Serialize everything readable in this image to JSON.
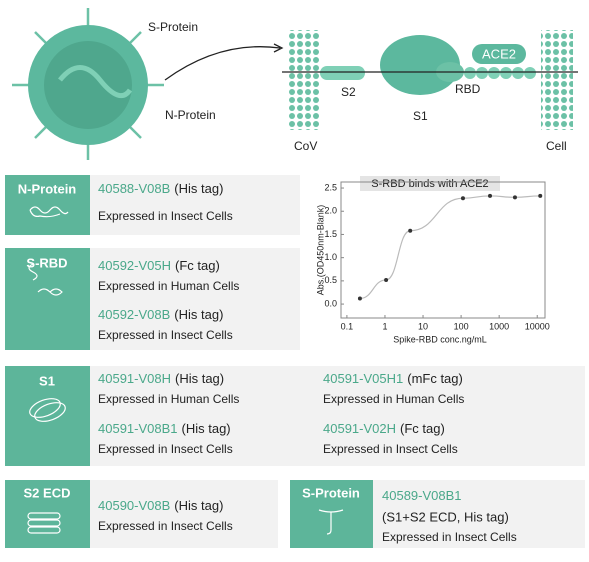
{
  "diagram": {
    "s_protein": "S-Protein",
    "n_protein": "N-Protein",
    "ace2": "ACE2",
    "s2": "S2",
    "rbd": "RBD",
    "s1": "S1",
    "cov": "CoV",
    "cell": "Cell"
  },
  "cards": [
    {
      "title": "N-Protein",
      "products": [
        {
          "id": "40588-V08B",
          "tag": "(His tag)",
          "expression": "Expressed in Insect Cells"
        }
      ]
    },
    {
      "title": "S-RBD",
      "products": [
        {
          "id": "40592-V05H",
          "tag": "(Fc tag)",
          "expression": "Expressed in Human Cells"
        },
        {
          "id": "40592-V08B",
          "tag": "(His tag)",
          "expression": "Expressed in Insect Cells"
        }
      ]
    },
    {
      "title": "S1",
      "products": [
        {
          "id": "40591-V08H",
          "tag": "(His tag)",
          "expression": "Expressed in Human Cells"
        },
        {
          "id": "40591-V08B1",
          "tag": "(His tag)",
          "expression": "Expressed in Insect Cells"
        },
        {
          "id": "40591-V05H1",
          "tag": "(mFc tag)",
          "expression": "Expressed in Human Cells"
        },
        {
          "id": "40591-V02H",
          "tag": "(Fc tag)",
          "expression": "Expressed in Insect Cells"
        }
      ]
    },
    {
      "title": "S2 ECD",
      "products": [
        {
          "id": "40590-V08B",
          "tag": "(His tag)",
          "expression": "Expressed in Insect Cells"
        }
      ]
    },
    {
      "title": "S-Protein",
      "products": [
        {
          "id": "40589-V08B1",
          "tag": "(S1+S2 ECD, His tag)",
          "expression": "Expressed in Insect Cells"
        }
      ]
    }
  ],
  "chart_data": {
    "type": "scatter",
    "title": "S-RBD binds with ACE2",
    "x_label": "Spike-RBD conc.ng/mL",
    "y_label": "Abs.(OD450nm-Blank)",
    "x": [
      0.22,
      1.07,
      4.6,
      112,
      575,
      2600,
      12000
    ],
    "values": [
      0.12,
      0.52,
      1.58,
      2.28,
      2.33,
      2.3,
      2.33
    ],
    "color": "#333333",
    "line_color": "#bbbbbb",
    "log_x": true,
    "xlim": [
      0.07,
      16000
    ],
    "ylim": [
      -0.3,
      2.63
    ],
    "xticks": [
      0.1,
      1,
      10,
      100,
      1000,
      10000
    ],
    "yticks": [
      {
        "value": 0,
        "label": "0.0"
      },
      {
        "value": 0.5,
        "label": "0.5"
      },
      {
        "value": 1,
        "label": "1.0"
      },
      {
        "value": 1.5,
        "label": "1.5"
      },
      {
        "value": 2,
        "label": "2.0"
      },
      {
        "value": 2.5,
        "label": "2.5"
      }
    ]
  }
}
